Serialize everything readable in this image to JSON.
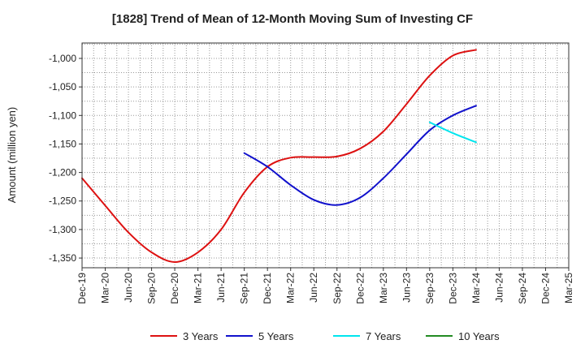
{
  "chart_data": {
    "type": "line",
    "title": "[1828]  Trend of Mean of 12-Month Moving Sum of Investing CF",
    "xlabel": "",
    "ylabel": "Amount (million yen)",
    "ylim": [
      -1367,
      -973
    ],
    "yticks": [
      -1000,
      -1050,
      -1100,
      -1150,
      -1200,
      -1250,
      -1300,
      -1350
    ],
    "ytick_labels": [
      "-1,000",
      "-1,050",
      "-1,100",
      "-1,150",
      "-1,200",
      "-1,250",
      "-1,300",
      "-1,350"
    ],
    "categories": [
      "Dec-19",
      "Mar-20",
      "Jun-20",
      "Sep-20",
      "Dec-20",
      "Mar-21",
      "Jun-21",
      "Sep-21",
      "Dec-21",
      "Mar-22",
      "Jun-22",
      "Sep-22",
      "Dec-22",
      "Mar-23",
      "Jun-23",
      "Sep-23",
      "Dec-23",
      "Mar-24",
      "Jun-24",
      "Sep-24",
      "Dec-24",
      "Mar-25"
    ],
    "grid": true,
    "legend_position": "bottom",
    "series": [
      {
        "name": "3 Years",
        "color": "#dd1111",
        "values": [
          -1210,
          -1258,
          -1305,
          -1340,
          -1357,
          -1340,
          -1300,
          -1235,
          -1190,
          -1174,
          -1173,
          -1172,
          -1158,
          -1128,
          -1080,
          -1030,
          -995,
          -985,
          null,
          null,
          null,
          null
        ]
      },
      {
        "name": "5 Years",
        "color": "#1111cc",
        "values": [
          null,
          null,
          null,
          null,
          null,
          null,
          null,
          -1166,
          -1190,
          -1222,
          -1248,
          -1257,
          -1244,
          -1210,
          -1168,
          -1126,
          -1100,
          -1083,
          null,
          null,
          null,
          null
        ]
      },
      {
        "name": "7 Years",
        "color": "#00e5ee",
        "values": [
          null,
          null,
          null,
          null,
          null,
          null,
          null,
          null,
          null,
          null,
          null,
          null,
          null,
          null,
          null,
          -1112,
          -1131,
          -1147,
          null,
          null,
          null,
          null
        ]
      },
      {
        "name": "10 Years",
        "color": "#228b22",
        "values": [
          null,
          null,
          null,
          null,
          null,
          null,
          null,
          null,
          null,
          null,
          null,
          null,
          null,
          null,
          null,
          null,
          null,
          null,
          null,
          null,
          null,
          null
        ]
      }
    ]
  }
}
